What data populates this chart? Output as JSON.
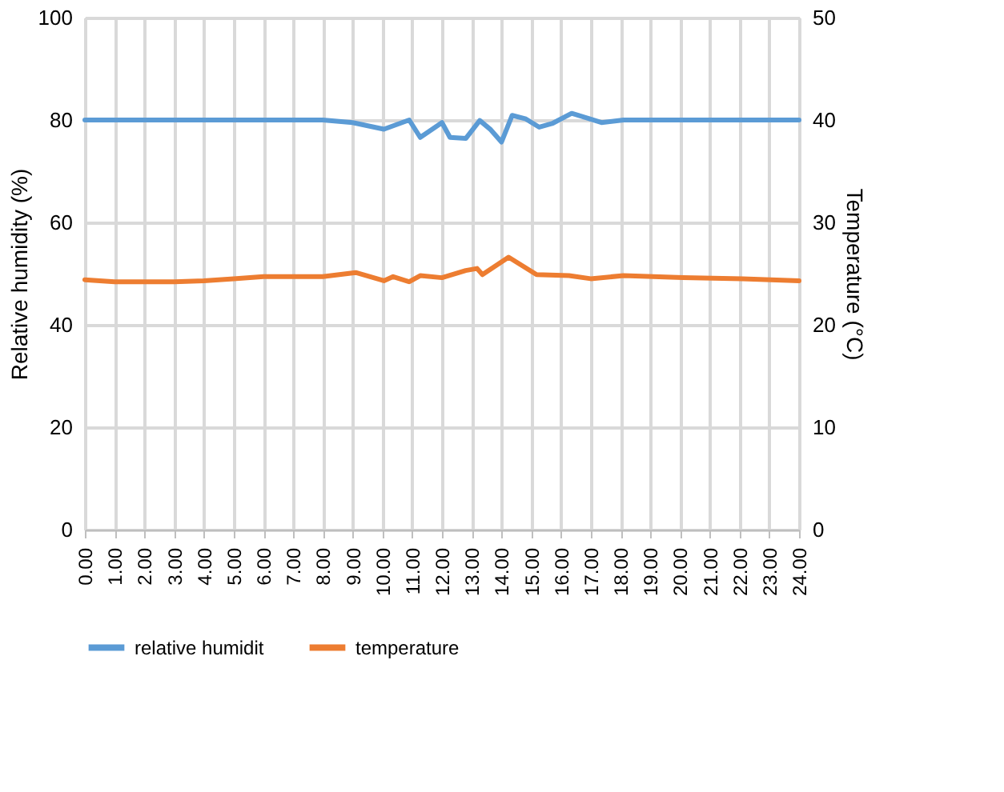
{
  "chart_data": {
    "type": "line",
    "ylabel": "Relative humidity (%)",
    "y2label": "Temperature (°C)",
    "xlim": [
      0,
      24
    ],
    "xticks": [
      {
        "value": 0,
        "label": "0.00"
      },
      {
        "value": 1,
        "label": "1.00"
      },
      {
        "value": 2,
        "label": "2.00"
      },
      {
        "value": 3,
        "label": "3.00"
      },
      {
        "value": 4,
        "label": "4.00"
      },
      {
        "value": 5,
        "label": "5.00"
      },
      {
        "value": 6,
        "label": "6.00"
      },
      {
        "value": 7,
        "label": "7.00"
      },
      {
        "value": 8,
        "label": "8.00"
      },
      {
        "value": 9,
        "label": "9.00"
      },
      {
        "value": 10,
        "label": "10.00"
      },
      {
        "value": 11,
        "label": "11.00"
      },
      {
        "value": 12,
        "label": "12.00"
      },
      {
        "value": 13,
        "label": "13.00"
      },
      {
        "value": 14,
        "label": "14.00"
      },
      {
        "value": 15,
        "label": "15.00"
      },
      {
        "value": 16,
        "label": "16.00"
      },
      {
        "value": 17,
        "label": "17.00"
      },
      {
        "value": 18,
        "label": "18.00"
      },
      {
        "value": 19,
        "label": "19.00"
      },
      {
        "value": 20,
        "label": "20.00"
      },
      {
        "value": 21,
        "label": "21.00"
      },
      {
        "value": 22,
        "label": "22.00"
      },
      {
        "value": 23,
        "label": "23.00"
      },
      {
        "value": 24,
        "label": "24.00"
      }
    ],
    "ylim": [
      0,
      100
    ],
    "yticks": [
      0,
      20,
      40,
      60,
      80,
      100
    ],
    "y2lim": [
      0,
      50
    ],
    "y2ticks": [
      0,
      10,
      20,
      30,
      40,
      50
    ],
    "grid": true,
    "legend": "bottom",
    "marker": "none",
    "line_style": "solid",
    "series": [
      {
        "name": "relative humidit",
        "color": "#5b9bd5",
        "x": [
          0,
          4,
          8,
          9,
          10.05,
          10.9,
          11.27,
          12,
          12.27,
          12.8,
          13.27,
          13.64,
          14,
          14.36,
          14.82,
          15.27,
          15.7,
          16.36,
          16.82,
          17.36,
          18.1,
          20,
          22,
          24
        ],
        "values": [
          80,
          80,
          80,
          79.5,
          78.2,
          80,
          76.6,
          79.5,
          76.6,
          76.4,
          79.9,
          78.1,
          75.7,
          80.9,
          80.2,
          78.6,
          79.3,
          81.3,
          80.5,
          79.5,
          80,
          80,
          80,
          80
        ]
      },
      {
        "name": "temperature",
        "color": "#ed7d31",
        "axis": "y2",
        "x": [
          0,
          1,
          2,
          3,
          4,
          5,
          6,
          7,
          8,
          9.1,
          10.05,
          10.36,
          10.9,
          11.27,
          12,
          12.8,
          13.18,
          13.36,
          14.24,
          15.18,
          16.27,
          17,
          18.1,
          20.1,
          22.1,
          24
        ],
        "values": [
          24.4,
          24.2,
          24.2,
          24.2,
          24.3,
          24.5,
          24.7,
          24.7,
          24.7,
          25.1,
          24.3,
          24.7,
          24.2,
          24.8,
          24.6,
          25.3,
          25.5,
          24.9,
          26.6,
          24.9,
          24.8,
          24.5,
          24.8,
          24.6,
          24.5,
          24.3
        ]
      }
    ]
  }
}
